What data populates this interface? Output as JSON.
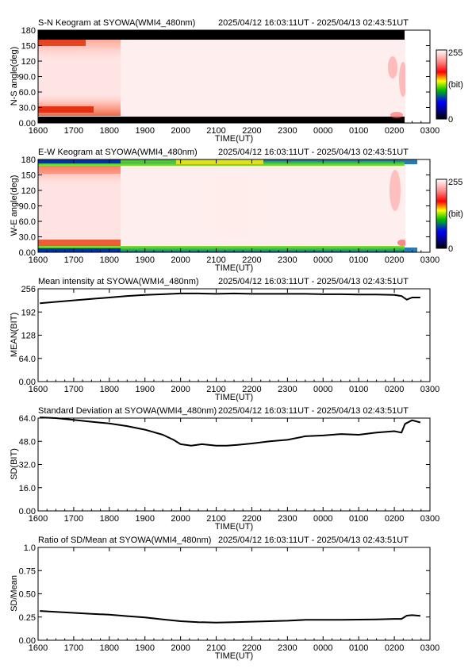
{
  "figure": {
    "time_range": "2025/04/12 16:03:11UT - 2025/04/13 02:43:51UT",
    "xlabel": "TIME(UT)",
    "x_ticks": [
      "1600",
      "1700",
      "1800",
      "1900",
      "2000",
      "2100",
      "2200",
      "2300",
      "0000",
      "0100",
      "0200",
      "0300"
    ],
    "colorbar": {
      "max_label": "255",
      "unit_label": "(bit)",
      "min_label": "0"
    }
  },
  "chart_data": [
    {
      "type": "heatmap",
      "title": "S-N Keogram at SYOWA(WMI4_480nm)",
      "ylabel": "N-S angle(deg)",
      "y_ticks": [
        "180",
        "150",
        "120",
        "90.0",
        "60.0",
        "30.0",
        "0.00"
      ],
      "ylim": [
        0,
        180
      ],
      "xlim_hours": [
        16.0,
        27.0
      ],
      "data_end_hour": 26.73,
      "colormap": "black-blue-green-yellow-red-white",
      "scale": [
        0,
        255
      ],
      "features": "bright (near-saturated) across most angles; red/yellow glow at the lowest and highest angles before ~1840UT; black (no data) bands at 0-8 deg and 172-180 deg; reddish patches near 0150-0230UT"
    },
    {
      "type": "heatmap",
      "title": "E-W Keogram at SYOWA(WMI4_480nm)",
      "ylabel": "W-E angle(deg)",
      "y_ticks": [
        "180",
        "150",
        "120",
        "90.0",
        "60.0",
        "30.0",
        "0.00"
      ],
      "ylim": [
        0,
        180
      ],
      "xlim_hours": [
        16.0,
        27.0
      ],
      "data_end_hour": 26.73,
      "colormap": "black-blue-green-yellow-red-white",
      "scale": [
        0,
        255
      ],
      "features": "bright across most angles; green/yellow bands at 0-8 deg and 172-180 deg; blue at both edges before ~1840UT; red glow near the edges early and after ~0200UT"
    },
    {
      "type": "line",
      "title": "Mean intensity at SYOWA(WMI4_480nm)",
      "ylabel": "MEAN(BIT)",
      "y_ticks": [
        "256",
        "192",
        "128",
        "64.0",
        "0.00"
      ],
      "ylim": [
        0,
        256
      ],
      "xlim_hours": [
        16.0,
        27.0
      ],
      "x": [
        16.05,
        16.5,
        17.0,
        17.5,
        18.0,
        18.5,
        19.0,
        19.5,
        20.0,
        20.5,
        21.0,
        21.5,
        22.0,
        22.5,
        23.0,
        23.5,
        24.0,
        24.5,
        25.0,
        25.5,
        26.0,
        26.2,
        26.35,
        26.5,
        26.73
      ],
      "y": [
        216,
        220,
        224,
        228,
        232,
        236,
        239,
        241,
        243,
        243,
        242,
        243,
        242,
        242,
        242,
        242,
        241,
        241,
        240,
        240,
        239,
        236,
        226,
        232,
        232
      ]
    },
    {
      "type": "line",
      "title": "Standard Deviation at SYOWA(WMI4_480nm)",
      "ylabel": "SD(BIT)",
      "y_ticks": [
        "64.0",
        "48.0",
        "32.0",
        "16.0",
        "0.00"
      ],
      "ylim": [
        0,
        64
      ],
      "xlim_hours": [
        16.0,
        27.0
      ],
      "x": [
        16.05,
        16.5,
        17.0,
        17.5,
        18.0,
        18.5,
        19.0,
        19.5,
        19.8,
        20.0,
        20.3,
        20.6,
        21.0,
        21.3,
        21.6,
        22.0,
        22.5,
        23.0,
        23.5,
        24.0,
        24.5,
        25.0,
        25.5,
        26.0,
        26.2,
        26.3,
        26.5,
        26.73
      ],
      "y": [
        64.5,
        64.0,
        62.8,
        61.5,
        60.3,
        58.5,
        56.0,
        52.5,
        49.0,
        46.0,
        45.0,
        46.0,
        45.0,
        45.0,
        45.5,
        46.5,
        48.0,
        49.0,
        51.5,
        52.0,
        53.0,
        52.5,
        54.0,
        55.0,
        54.0,
        60.0,
        62.5,
        61.0
      ]
    },
    {
      "type": "line",
      "title": "Ratio of SD/Mean at SYOWA(WMI4_480nm)",
      "ylabel": "SD/Mean",
      "y_ticks": [
        "1.0",
        "0.75",
        "0.50",
        "0.25",
        "0.00"
      ],
      "ylim": [
        0,
        1.0
      ],
      "xlim_hours": [
        16.0,
        27.0
      ],
      "x": [
        16.05,
        16.5,
        17.0,
        17.5,
        18.0,
        18.5,
        19.0,
        19.5,
        20.0,
        20.5,
        21.0,
        21.5,
        22.0,
        22.5,
        23.0,
        23.5,
        24.0,
        24.5,
        25.0,
        25.5,
        26.0,
        26.2,
        26.35,
        26.5,
        26.73
      ],
      "y": [
        0.315,
        0.305,
        0.295,
        0.285,
        0.275,
        0.26,
        0.245,
        0.225,
        0.205,
        0.195,
        0.19,
        0.195,
        0.2,
        0.205,
        0.21,
        0.22,
        0.22,
        0.22,
        0.222,
        0.225,
        0.23,
        0.23,
        0.265,
        0.27,
        0.262
      ]
    }
  ]
}
